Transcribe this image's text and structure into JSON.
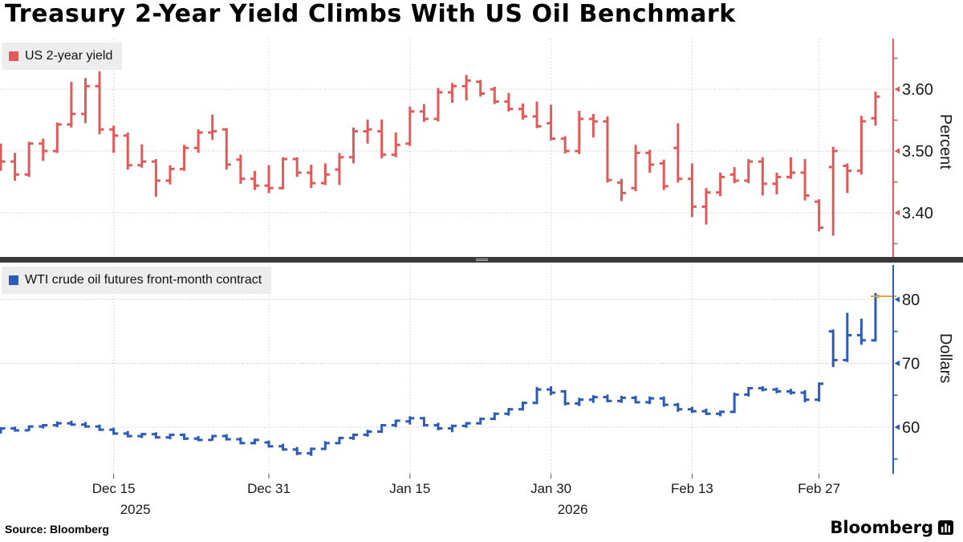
{
  "title": "Treasury 2-Year Yield Climbs With US Oil Benchmark",
  "source": "Source: Bloomberg",
  "brand": {
    "wordmark": "Bloomberg"
  },
  "colors": {
    "yield_series": "#e05a5a",
    "oil_series": "#2d5cb8",
    "last_price_marker": "#eda33b",
    "grid_h": "#b3b3b3",
    "grid_v": "#c6c6c6",
    "divider": "#3a3a3a",
    "legend_bg": "#ededed",
    "text": "#1a1a1a"
  },
  "x_axis": {
    "tick_labels": [
      {
        "label": "Dec 15",
        "bar_index": 8,
        "year": "2025"
      },
      {
        "label": "Dec 31",
        "bar_index": 19
      },
      {
        "label": "Jan 15",
        "bar_index": 29
      },
      {
        "label": "Jan 30",
        "bar_index": 39,
        "year": "2026"
      },
      {
        "label": "Feb 13",
        "bar_index": 49
      },
      {
        "label": "Feb 27",
        "bar_index": 58
      }
    ]
  },
  "chart_data": [
    {
      "type": "ohlc",
      "panel": "top",
      "legend": "US 2-year yield",
      "axis_title": "Percent",
      "axis_side": "right",
      "color": "#e05a5a",
      "ylim": [
        3.326,
        3.682
      ],
      "y_ticks_major": [
        3.4,
        3.5,
        3.6
      ],
      "y_ticks_minor": [
        3.35,
        3.45,
        3.55,
        3.65
      ],
      "tick_decimals": 2,
      "grid": true,
      "bars_ohlc": [
        [
          3.5,
          3.512,
          3.468,
          3.483
        ],
        [
          3.483,
          3.497,
          3.452,
          3.462
        ],
        [
          3.462,
          3.515,
          3.458,
          3.512
        ],
        [
          3.512,
          3.52,
          3.484,
          3.5
        ],
        [
          3.5,
          3.546,
          3.497,
          3.543
        ],
        [
          3.543,
          3.612,
          3.538,
          3.56
        ],
        [
          3.56,
          3.618,
          3.545,
          3.605
        ],
        [
          3.605,
          3.629,
          3.527,
          3.535
        ],
        [
          3.535,
          3.541,
          3.497,
          3.525
        ],
        [
          3.525,
          3.53,
          3.47,
          3.477
        ],
        [
          3.477,
          3.511,
          3.473,
          3.483
        ],
        [
          3.483,
          3.487,
          3.426,
          3.452
        ],
        [
          3.452,
          3.477,
          3.446,
          3.471
        ],
        [
          3.471,
          3.51,
          3.468,
          3.505
        ],
        [
          3.505,
          3.535,
          3.497,
          3.53
        ],
        [
          3.53,
          3.559,
          3.518,
          3.532
        ],
        [
          3.535,
          3.537,
          3.47,
          3.478
        ],
        [
          3.486,
          3.494,
          3.447,
          3.455
        ],
        [
          3.455,
          3.468,
          3.437,
          3.444
        ],
        [
          3.444,
          3.477,
          3.432,
          3.44
        ],
        [
          3.44,
          3.49,
          3.438,
          3.487
        ],
        [
          3.487,
          3.49,
          3.458,
          3.465
        ],
        [
          3.465,
          3.478,
          3.44,
          3.448
        ],
        [
          3.448,
          3.48,
          3.445,
          3.462
        ],
        [
          3.47,
          3.497,
          3.445,
          3.49
        ],
        [
          3.49,
          3.538,
          3.48,
          3.532
        ],
        [
          3.532,
          3.551,
          3.512,
          3.535
        ],
        [
          3.532,
          3.551,
          3.488,
          3.494
        ],
        [
          3.494,
          3.53,
          3.49,
          3.51
        ],
        [
          3.512,
          3.572,
          3.508,
          3.564
        ],
        [
          3.564,
          3.576,
          3.547,
          3.552
        ],
        [
          3.552,
          3.602,
          3.548,
          3.595
        ],
        [
          3.595,
          3.61,
          3.578,
          3.605
        ],
        [
          3.605,
          3.623,
          3.582,
          3.614
        ],
        [
          3.612,
          3.615,
          3.588,
          3.593
        ],
        [
          3.6,
          3.604,
          3.576,
          3.58
        ],
        [
          3.58,
          3.594,
          3.564,
          3.568
        ],
        [
          3.568,
          3.577,
          3.551,
          3.556
        ],
        [
          3.556,
          3.58,
          3.537,
          3.54
        ],
        [
          3.545,
          3.575,
          3.517,
          3.52
        ],
        [
          3.52,
          3.524,
          3.496,
          3.5
        ],
        [
          3.5,
          3.565,
          3.495,
          3.552
        ],
        [
          3.552,
          3.56,
          3.522,
          3.548
        ],
        [
          3.548,
          3.556,
          3.449,
          3.453
        ],
        [
          3.449,
          3.455,
          3.419,
          3.432
        ],
        [
          3.44,
          3.51,
          3.435,
          3.497
        ],
        [
          3.497,
          3.502,
          3.465,
          3.478
        ],
        [
          3.48,
          3.486,
          3.437,
          3.443
        ],
        [
          3.505,
          3.545,
          3.449,
          3.455
        ],
        [
          3.455,
          3.48,
          3.393,
          3.41
        ],
        [
          3.41,
          3.44,
          3.381,
          3.433
        ],
        [
          3.433,
          3.465,
          3.427,
          3.458
        ],
        [
          3.462,
          3.474,
          3.448,
          3.452
        ],
        [
          3.452,
          3.487,
          3.448,
          3.483
        ],
        [
          3.483,
          3.49,
          3.428,
          3.447
        ],
        [
          3.447,
          3.465,
          3.43,
          3.458
        ],
        [
          3.458,
          3.49,
          3.455,
          3.465
        ],
        [
          3.465,
          3.487,
          3.42,
          3.428
        ],
        [
          3.418,
          3.422,
          3.37,
          3.376
        ],
        [
          3.474,
          3.507,
          3.363,
          3.5
        ],
        [
          3.476,
          3.48,
          3.432,
          3.468
        ],
        [
          3.468,
          3.557,
          3.462,
          3.548
        ],
        [
          3.553,
          3.596,
          3.541,
          3.588
        ]
      ]
    },
    {
      "type": "ohlc",
      "panel": "bottom",
      "legend": "WTI crude oil futures front-month contract",
      "axis_title": "Dollars",
      "axis_side": "right",
      "color": "#2d5cb8",
      "ylim": [
        52.7,
        85.4
      ],
      "y_ticks_major": [
        60,
        70,
        80
      ],
      "y_ticks_minor": [
        55,
        65,
        75
      ],
      "tick_decimals": 0,
      "grid": true,
      "last_price_marker": {
        "value": 80.5,
        "color": "#eda33b"
      },
      "bars_ohlc": [
        [
          59.4,
          60.0,
          59.0,
          59.8
        ],
        [
          59.8,
          60.1,
          59.3,
          59.5
        ],
        [
          59.5,
          60.3,
          59.4,
          60.1
        ],
        [
          60.1,
          60.5,
          59.8,
          60.3
        ],
        [
          60.3,
          60.9,
          60.0,
          60.6
        ],
        [
          60.6,
          61.0,
          60.2,
          60.4
        ],
        [
          60.4,
          60.8,
          59.9,
          60.1
        ],
        [
          60.1,
          60.4,
          59.4,
          59.6
        ],
        [
          59.6,
          59.9,
          58.8,
          59.0
        ],
        [
          59.0,
          59.4,
          58.4,
          58.6
        ],
        [
          58.6,
          59.1,
          58.3,
          58.9
        ],
        [
          58.9,
          59.2,
          58.2,
          58.4
        ],
        [
          58.4,
          59.0,
          58.1,
          58.8
        ],
        [
          58.8,
          59.0,
          58.0,
          58.2
        ],
        [
          58.2,
          58.6,
          57.8,
          58.0
        ],
        [
          58.0,
          58.8,
          57.9,
          58.6
        ],
        [
          58.6,
          58.9,
          57.9,
          58.1
        ],
        [
          58.1,
          58.4,
          57.3,
          57.5
        ],
        [
          57.5,
          58.2,
          57.3,
          58.0
        ],
        [
          57.6,
          57.9,
          56.8,
          57.0
        ],
        [
          57.0,
          57.4,
          56.3,
          56.5
        ],
        [
          56.5,
          56.9,
          55.6,
          55.9
        ],
        [
          55.9,
          56.8,
          55.5,
          56.6
        ],
        [
          56.6,
          57.8,
          56.4,
          57.5
        ],
        [
          57.5,
          58.5,
          57.3,
          58.3
        ],
        [
          58.3,
          59.0,
          58.0,
          58.8
        ],
        [
          58.8,
          59.6,
          58.5,
          59.3
        ],
        [
          59.3,
          60.5,
          59.1,
          60.3
        ],
        [
          60.3,
          61.2,
          60.0,
          61.0
        ],
        [
          60.9,
          61.7,
          60.4,
          61.4
        ],
        [
          61.4,
          61.6,
          60.1,
          60.3
        ],
        [
          60.3,
          60.7,
          59.5,
          59.8
        ],
        [
          59.8,
          60.4,
          59.2,
          60.2
        ],
        [
          60.2,
          60.8,
          59.9,
          60.6
        ],
        [
          60.6,
          61.5,
          60.4,
          61.3
        ],
        [
          61.3,
          62.3,
          61.1,
          62.1
        ],
        [
          62.1,
          63.0,
          61.8,
          62.8
        ],
        [
          62.8,
          64.0,
          62.6,
          63.8
        ],
        [
          63.8,
          66.3,
          63.6,
          65.9
        ],
        [
          65.9,
          66.4,
          65.0,
          65.4
        ],
        [
          65.6,
          65.8,
          63.4,
          63.7
        ],
        [
          63.7,
          64.6,
          63.3,
          64.3
        ],
        [
          64.3,
          65.0,
          63.8,
          64.7
        ],
        [
          64.7,
          65.1,
          63.9,
          64.1
        ],
        [
          64.1,
          64.9,
          63.8,
          64.6
        ],
        [
          64.6,
          64.9,
          63.7,
          63.9
        ],
        [
          63.9,
          64.8,
          63.6,
          64.5
        ],
        [
          64.5,
          64.8,
          63.2,
          63.5
        ],
        [
          63.5,
          63.8,
          62.4,
          62.8
        ],
        [
          62.8,
          63.2,
          62.2,
          62.5
        ],
        [
          62.5,
          62.9,
          61.9,
          62.1
        ],
        [
          62.1,
          62.6,
          61.7,
          62.4
        ],
        [
          62.4,
          65.4,
          62.2,
          65.1
        ],
        [
          65.1,
          66.3,
          64.8,
          66.1
        ],
        [
          66.1,
          66.4,
          65.6,
          65.9
        ],
        [
          65.9,
          66.2,
          65.3,
          65.6
        ],
        [
          65.6,
          66.0,
          65.1,
          65.4
        ],
        [
          65.4,
          65.8,
          63.9,
          64.3
        ],
        [
          64.3,
          67.0,
          64.0,
          66.8
        ],
        [
          75.0,
          75.3,
          69.4,
          70.5
        ],
        [
          70.5,
          77.9,
          70.2,
          74.4
        ],
        [
          74.4,
          77.0,
          72.9,
          73.6
        ],
        [
          73.6,
          81.0,
          73.4,
          80.5
        ]
      ]
    }
  ]
}
